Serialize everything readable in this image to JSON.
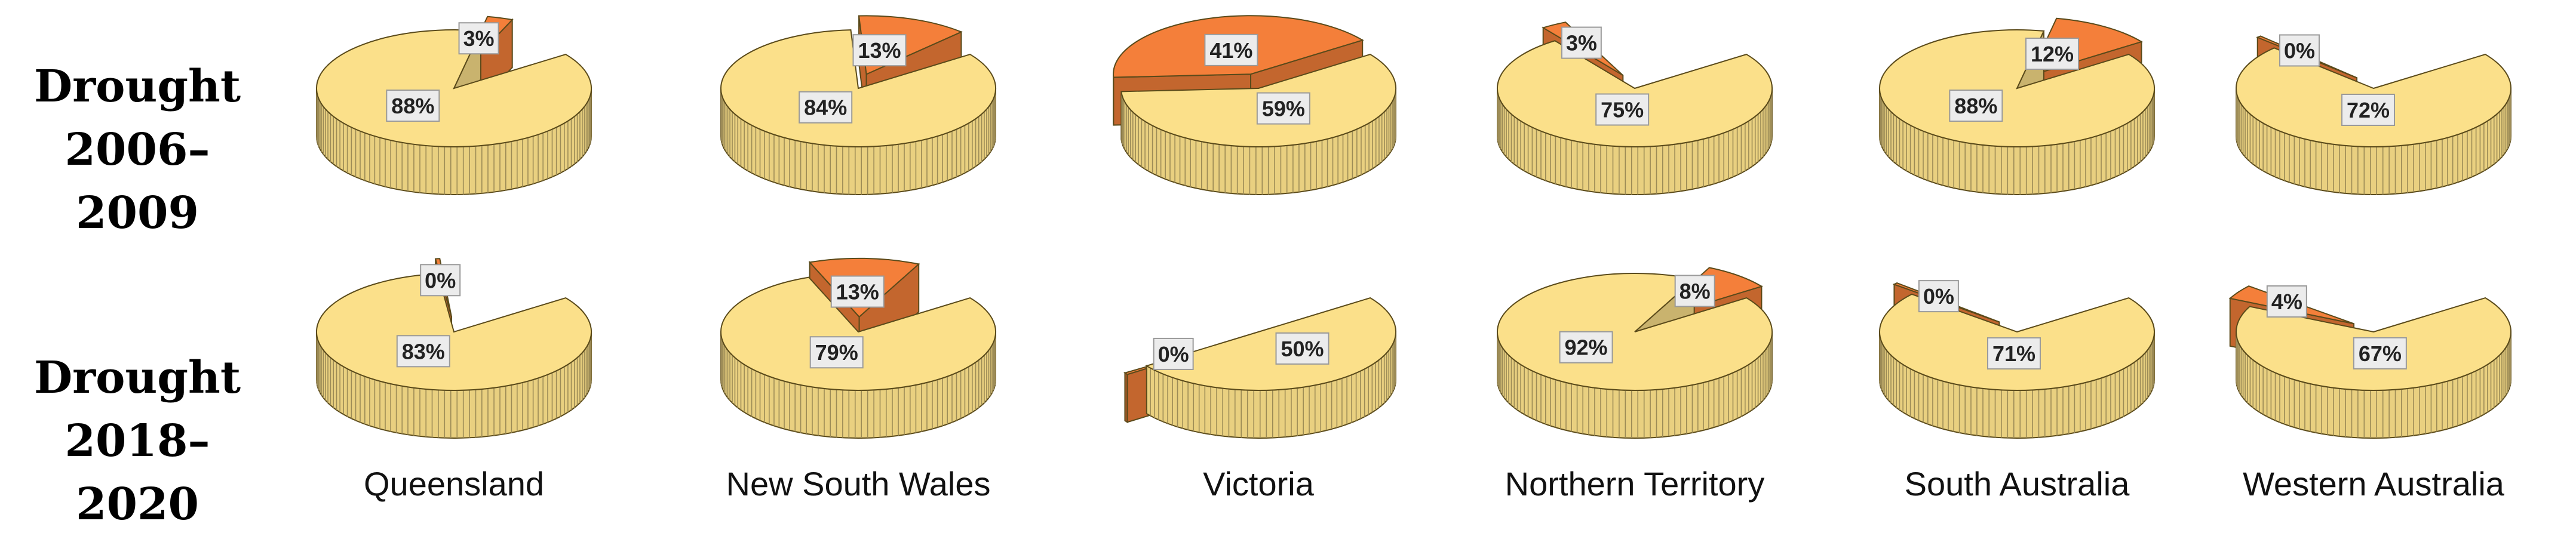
{
  "rows": [
    {
      "line1": "Drought",
      "line2": "2006–2009"
    },
    {
      "line1": "Drought",
      "line2": "2018–2020"
    }
  ],
  "states": [
    "Queensland",
    "New South Wales",
    "Victoria",
    "Northern Territory",
    "South Australia",
    "Western Australia"
  ],
  "colors": {
    "primary": "#FBE08A",
    "secondary": "#F47F3A",
    "outline": "#5a4a1a"
  },
  "chart_data": [
    {
      "type": "pie",
      "title": "",
      "period": "Drought 2006–2009",
      "category": "Queensland",
      "slices": [
        {
          "label": "88%",
          "value": 88
        },
        {
          "label": "3%",
          "value": 3
        }
      ]
    },
    {
      "type": "pie",
      "title": "",
      "period": "Drought 2006–2009",
      "category": "New South Wales",
      "slices": [
        {
          "label": "84%",
          "value": 84
        },
        {
          "label": "13%",
          "value": 13
        }
      ]
    },
    {
      "type": "pie",
      "title": "",
      "period": "Drought 2006–2009",
      "category": "Victoria",
      "slices": [
        {
          "label": "59%",
          "value": 59
        },
        {
          "label": "41%",
          "value": 41
        }
      ]
    },
    {
      "type": "pie",
      "title": "",
      "period": "Drought 2006–2009",
      "category": "Northern Territory",
      "slices": [
        {
          "label": "75%",
          "value": 75
        },
        {
          "label": "3%",
          "value": 3
        }
      ]
    },
    {
      "type": "pie",
      "title": "",
      "period": "Drought 2006–2009",
      "category": "South Australia",
      "slices": [
        {
          "label": "88%",
          "value": 88
        },
        {
          "label": "12%",
          "value": 12
        }
      ]
    },
    {
      "type": "pie",
      "title": "",
      "period": "Drought 2006–2009",
      "category": "Western Australia",
      "slices": [
        {
          "label": "72%",
          "value": 72
        },
        {
          "label": "0%",
          "value": 0
        }
      ]
    },
    {
      "type": "pie",
      "title": "",
      "period": "Drought 2018–2020",
      "category": "Queensland",
      "slices": [
        {
          "label": "83%",
          "value": 83
        },
        {
          "label": "0%",
          "value": 0
        }
      ]
    },
    {
      "type": "pie",
      "title": "",
      "period": "Drought 2018–2020",
      "category": "New South Wales",
      "slices": [
        {
          "label": "79%",
          "value": 79
        },
        {
          "label": "13%",
          "value": 13
        }
      ]
    },
    {
      "type": "pie",
      "title": "",
      "period": "Drought 2018–2020",
      "category": "Victoria",
      "slices": [
        {
          "label": "50%",
          "value": 50
        },
        {
          "label": "0%",
          "value": 0
        }
      ]
    },
    {
      "type": "pie",
      "title": "",
      "period": "Drought 2018–2020",
      "category": "Northern Territory",
      "slices": [
        {
          "label": "92%",
          "value": 92
        },
        {
          "label": "8%",
          "value": 8
        }
      ]
    },
    {
      "type": "pie",
      "title": "",
      "period": "Drought 2018–2020",
      "category": "South Australia",
      "slices": [
        {
          "label": "71%",
          "value": 71
        },
        {
          "label": "0%",
          "value": 0
        }
      ]
    },
    {
      "type": "pie",
      "title": "",
      "period": "Drought 2018–2020",
      "category": "Western Australia",
      "slices": [
        {
          "label": "67%",
          "value": 67
        },
        {
          "label": "4%",
          "value": 4
        }
      ]
    }
  ]
}
